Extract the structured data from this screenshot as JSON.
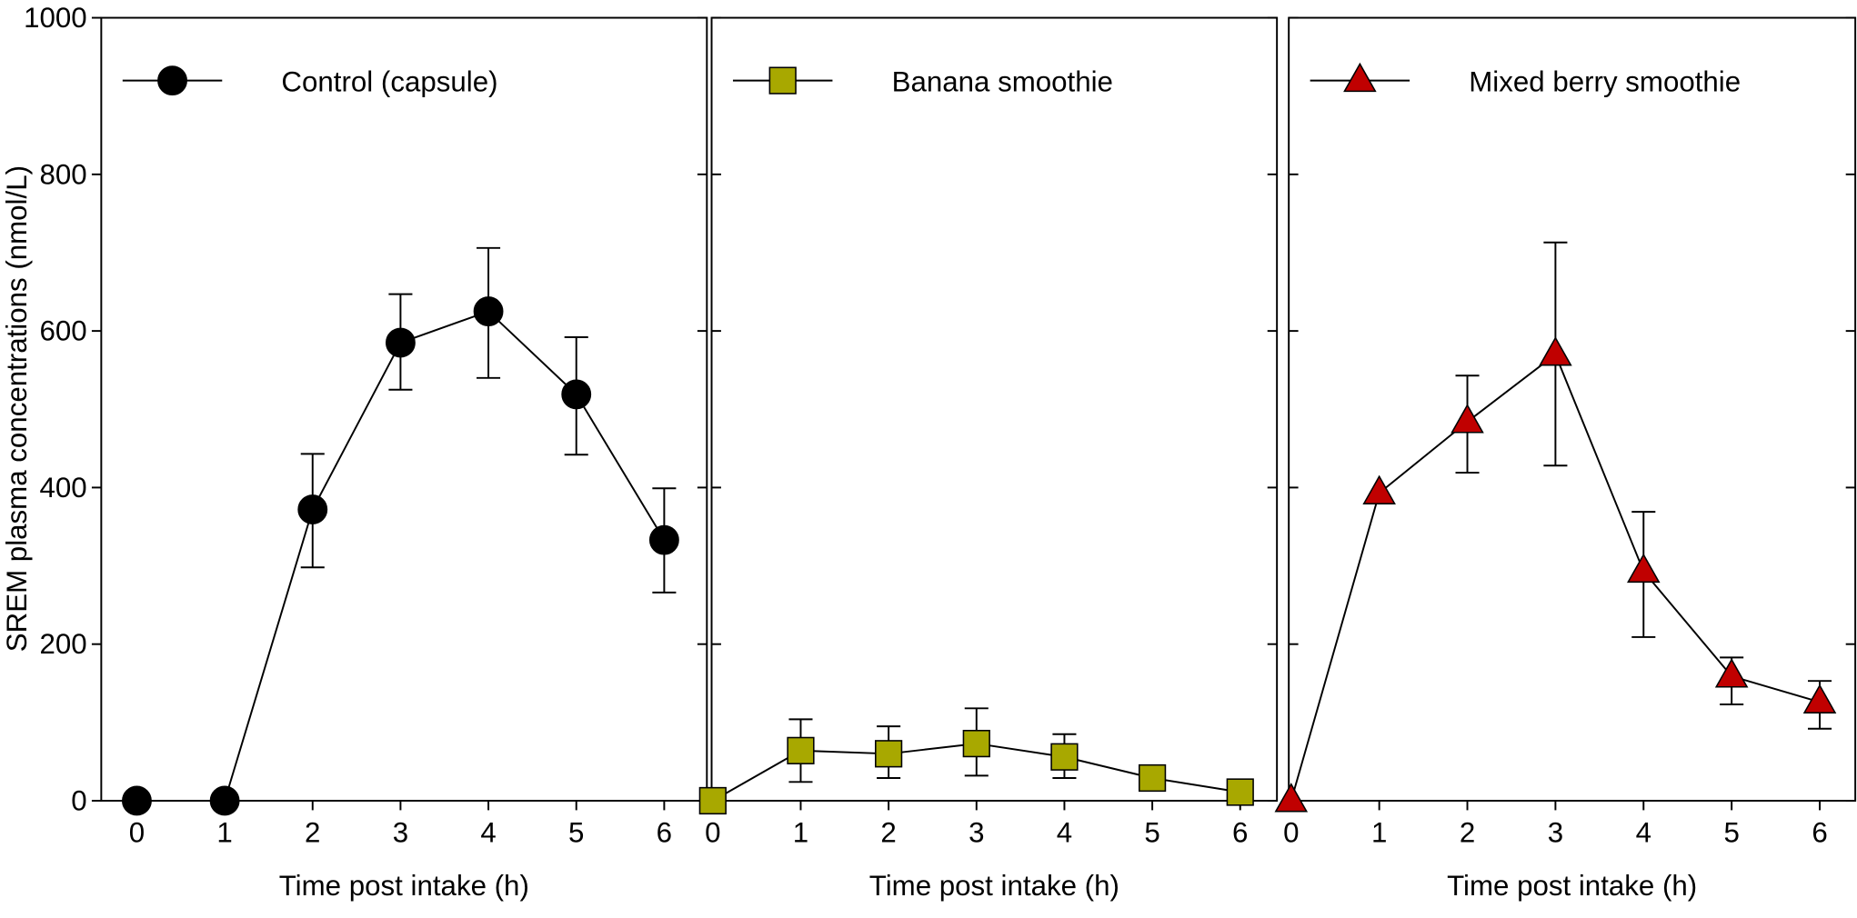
{
  "chart_data": [
    {
      "type": "line",
      "xlabel": "Time post intake (h)",
      "ylabel": "SREM plasma concentrations (nmol/L)",
      "xlim": [
        0,
        6
      ],
      "ylim": [
        0,
        1000
      ],
      "xticks": [
        "0",
        "1",
        "2",
        "3",
        "4",
        "5",
        "6"
      ],
      "yticks": [
        "0",
        "200",
        "400",
        "600",
        "800",
        "1000"
      ],
      "legend_position": "top",
      "series": [
        {
          "name": "Control (capsule)",
          "marker": "circle",
          "color": "#000000",
          "x": [
            0,
            1,
            2,
            3,
            4,
            5,
            6
          ],
          "y": [
            0,
            0,
            372,
            585,
            625,
            519,
            333
          ],
          "err_upper": [
            0,
            0,
            443,
            647,
            706,
            592,
            399
          ],
          "err_lower": [
            0,
            0,
            298,
            525,
            540,
            442,
            266
          ]
        }
      ]
    },
    {
      "type": "line",
      "xlabel": "Time post intake (h)",
      "xlim": [
        0,
        6
      ],
      "ylim": [
        0,
        1000
      ],
      "xticks": [
        "0",
        "1",
        "2",
        "3",
        "4",
        "5",
        "6"
      ],
      "legend_position": "top",
      "series": [
        {
          "name": "Banana smoothie",
          "marker": "square",
          "color": "#a8a800",
          "x": [
            0,
            1,
            2,
            3,
            4,
            5,
            6
          ],
          "y": [
            0,
            64,
            60,
            73,
            56,
            29,
            11
          ],
          "err_upper": [
            0,
            104,
            95,
            118,
            85,
            29,
            11
          ],
          "err_lower": [
            0,
            24,
            29,
            32,
            29,
            29,
            11
          ]
        }
      ]
    },
    {
      "type": "line",
      "xlabel": "Time post intake (h)",
      "xlim": [
        0,
        6
      ],
      "ylim": [
        0,
        1000
      ],
      "xticks": [
        "0",
        "1",
        "2",
        "3",
        "4",
        "5",
        "6"
      ],
      "legend_position": "top",
      "series": [
        {
          "name": "Mixed berry smoothie",
          "marker": "triangle",
          "color": "#c00000",
          "x": [
            0,
            1,
            2,
            3,
            4,
            5,
            6
          ],
          "y": [
            0,
            393,
            484,
            570,
            293,
            159,
            126
          ],
          "err_upper": [
            0,
            393,
            543,
            713,
            369,
            183,
            153
          ],
          "err_lower": [
            0,
            393,
            419,
            428,
            209,
            123,
            92
          ]
        }
      ]
    }
  ]
}
